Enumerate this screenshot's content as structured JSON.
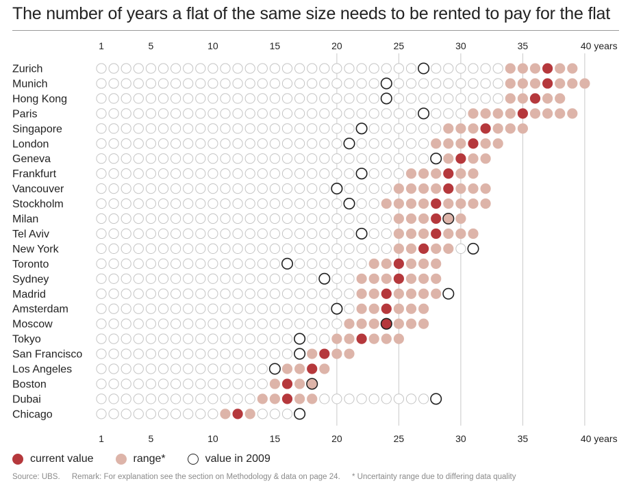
{
  "title": "The number of years a flat of the same size needs to be rented to pay for the flat",
  "chart_data": {
    "type": "dot-matrix",
    "title": "The number of years a flat of the same size needs to be rented to pay for the flat",
    "xlim": [
      1,
      40
    ],
    "x_ticks": [
      1,
      5,
      10,
      15,
      20,
      25,
      30,
      35,
      40
    ],
    "x_tick_labels": [
      "1",
      "5",
      "10",
      "15",
      "20",
      "25",
      "30",
      "35",
      "40 years"
    ],
    "gridlines": [
      20,
      25,
      30,
      35,
      40
    ],
    "legend_placement": "bottom",
    "series": [
      {
        "name": "current value"
      },
      {
        "name": "range*"
      },
      {
        "name": "value in 2009"
      }
    ],
    "cities": [
      {
        "name": "Zurich",
        "current": 37,
        "range": [
          34,
          39
        ],
        "v2009": 27
      },
      {
        "name": "Munich",
        "current": 37,
        "range": [
          34,
          40
        ],
        "v2009": 24
      },
      {
        "name": "Hong Kong",
        "current": 36,
        "range": [
          34,
          38
        ],
        "v2009": 24
      },
      {
        "name": "Paris",
        "current": 35,
        "range": [
          31,
          39
        ],
        "v2009": 27
      },
      {
        "name": "Singapore",
        "current": 32,
        "range": [
          29,
          35
        ],
        "v2009": 22
      },
      {
        "name": "London",
        "current": 31,
        "range": [
          28,
          33
        ],
        "v2009": 21
      },
      {
        "name": "Geneva",
        "current": 30,
        "range": [
          29,
          32
        ],
        "v2009": 28
      },
      {
        "name": "Frankfurt",
        "current": 29,
        "range": [
          26,
          31
        ],
        "v2009": 22
      },
      {
        "name": "Vancouver",
        "current": 29,
        "range": [
          25,
          32
        ],
        "v2009": 20
      },
      {
        "name": "Stockholm",
        "current": 28,
        "range": [
          24,
          32
        ],
        "v2009": 21
      },
      {
        "name": "Milan",
        "current": 28,
        "range": [
          25,
          30
        ],
        "v2009": 29
      },
      {
        "name": "Tel Aviv",
        "current": 28,
        "range": [
          25,
          31
        ],
        "v2009": 22
      },
      {
        "name": "New York",
        "current": 27,
        "range": [
          25,
          29
        ],
        "v2009": 31
      },
      {
        "name": "Toronto",
        "current": 25,
        "range": [
          23,
          28
        ],
        "v2009": 16
      },
      {
        "name": "Sydney",
        "current": 25,
        "range": [
          22,
          28
        ],
        "v2009": 19
      },
      {
        "name": "Madrid",
        "current": 24,
        "range": [
          22,
          28
        ],
        "v2009": 29
      },
      {
        "name": "Amsterdam",
        "current": 24,
        "range": [
          22,
          27
        ],
        "v2009": 20
      },
      {
        "name": "Moscow",
        "current": 24,
        "range": [
          21,
          27
        ],
        "v2009": 24
      },
      {
        "name": "Tokyo",
        "current": 22,
        "range": [
          20,
          25
        ],
        "v2009": 17
      },
      {
        "name": "San Francisco",
        "current": 19,
        "range": [
          18,
          21
        ],
        "v2009": 17
      },
      {
        "name": "Los Angeles",
        "current": 18,
        "range": [
          16,
          19
        ],
        "v2009": 15
      },
      {
        "name": "Boston",
        "current": 16,
        "range": [
          15,
          18
        ],
        "v2009": 18
      },
      {
        "name": "Dubai",
        "current": 16,
        "range": [
          14,
          18
        ],
        "v2009": 28
      },
      {
        "name": "Chicago",
        "current": 12,
        "range": [
          11,
          13
        ],
        "v2009": 17
      }
    ]
  },
  "legend": {
    "current": "current value",
    "range": "range*",
    "v2009": "value in 2009"
  },
  "source": {
    "source_text": "Source: UBS.",
    "remark": "Remark: For explanation see the section on Methodology & data on page 24.",
    "footnote": "* Uncertainty range due to differing data quality"
  },
  "colors": {
    "current": "#b5383c",
    "range": "#ddb4a9",
    "empty_stroke": "#c4c4c4",
    "v2009_stroke": "#1e1e1e",
    "grid": "#c8c8c8"
  }
}
